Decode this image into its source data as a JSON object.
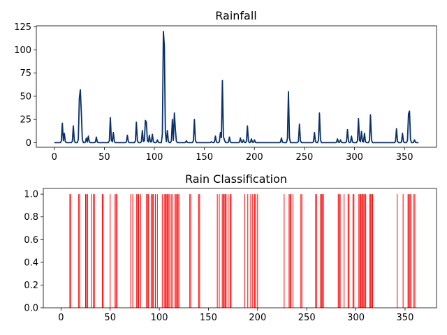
{
  "chart_data": [
    {
      "type": "line",
      "title": "Rainfall",
      "xlabel": "",
      "ylabel": "",
      "xlim": [
        -18,
        382
      ],
      "ylim": [
        -5,
        126
      ],
      "xticks": [
        0,
        50,
        100,
        150,
        200,
        250,
        300,
        350
      ],
      "yticks": [
        0,
        25,
        50,
        75,
        100,
        125
      ],
      "color": "#08306b",
      "grid": false,
      "x_range": [
        0,
        364
      ],
      "peaks": [
        [
          8,
          21
        ],
        [
          10,
          10
        ],
        [
          19,
          18
        ],
        [
          25,
          48
        ],
        [
          26,
          57
        ],
        [
          27,
          32
        ],
        [
          32,
          5
        ],
        [
          34,
          7
        ],
        [
          42,
          6
        ],
        [
          56,
          27
        ],
        [
          59,
          11
        ],
        [
          73,
          8
        ],
        [
          82,
          22
        ],
        [
          88,
          13
        ],
        [
          91,
          24
        ],
        [
          92,
          22
        ],
        [
          95,
          8
        ],
        [
          98,
          9
        ],
        [
          103,
          3
        ],
        [
          109,
          120
        ],
        [
          110,
          104
        ],
        [
          113,
          13
        ],
        [
          118,
          25
        ],
        [
          120,
          32
        ],
        [
          121,
          14
        ],
        [
          132,
          2
        ],
        [
          140,
          25
        ],
        [
          157,
          1
        ],
        [
          161,
          7
        ],
        [
          166,
          11
        ],
        [
          168,
          67
        ],
        [
          170,
          3
        ],
        [
          175,
          6
        ],
        [
          186,
          5
        ],
        [
          189,
          3
        ],
        [
          193,
          18
        ],
        [
          197,
          4
        ],
        [
          200,
          3
        ],
        [
          227,
          5
        ],
        [
          234,
          55
        ],
        [
          245,
          20
        ],
        [
          260,
          11
        ],
        [
          265,
          32
        ],
        [
          283,
          4
        ],
        [
          286,
          3
        ],
        [
          293,
          14
        ],
        [
          297,
          7
        ],
        [
          304,
          26
        ],
        [
          307,
          12
        ],
        [
          310,
          10
        ],
        [
          316,
          30
        ],
        [
          342,
          15
        ],
        [
          348,
          10
        ],
        [
          354,
          31
        ],
        [
          355,
          34
        ],
        [
          360,
          3
        ]
      ]
    },
    {
      "type": "bar",
      "title": "Rain Classification",
      "xlabel": "",
      "ylabel": "",
      "xlim": [
        -18,
        382
      ],
      "ylim": [
        0,
        1.05
      ],
      "xticks": [
        0,
        50,
        100,
        150,
        200,
        250,
        300,
        350
      ],
      "yticks": [
        0.0,
        0.2,
        0.4,
        0.6,
        0.8,
        1.0
      ],
      "color": "#ff0000",
      "grid": false,
      "value": 1,
      "rain_days": [
        9,
        10,
        18,
        19,
        25,
        26,
        27,
        31,
        33,
        34,
        42,
        43,
        50,
        55,
        56,
        57,
        71,
        73,
        77,
        78,
        79,
        81,
        87,
        88,
        89,
        92,
        93,
        94,
        96,
        98,
        103,
        105,
        106,
        107,
        108,
        109,
        110,
        112,
        113,
        116,
        117,
        118,
        119,
        120,
        131,
        132,
        140,
        141,
        159,
        161,
        164,
        165,
        166,
        167,
        168,
        170,
        172,
        173,
        187,
        190,
        193,
        195,
        197,
        198,
        200,
        227,
        232,
        233,
        234,
        236,
        244,
        245,
        259,
        260,
        264,
        265,
        266,
        267,
        282,
        283,
        284,
        288,
        292,
        293,
        297,
        298,
        303,
        304,
        305,
        306,
        307,
        308,
        309,
        310,
        314,
        315,
        316,
        317,
        342,
        348,
        353,
        354,
        355,
        356,
        359,
        360
      ]
    }
  ]
}
